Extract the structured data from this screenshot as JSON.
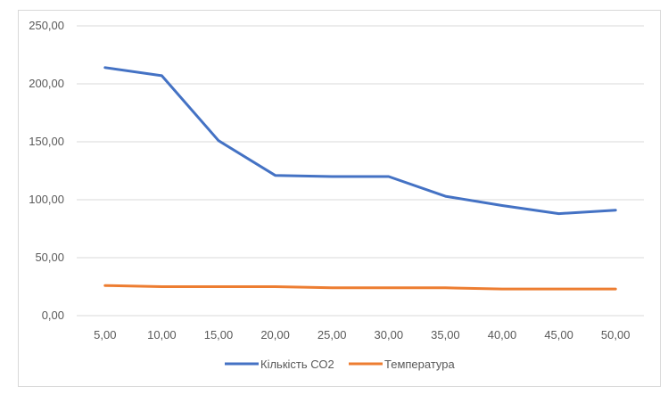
{
  "chart_data": {
    "type": "line",
    "title": "",
    "xlabel": "",
    "ylabel": "",
    "categories": [
      "5,00",
      "10,00",
      "15,00",
      "20,00",
      "25,00",
      "30,00",
      "35,00",
      "40,00",
      "45,00",
      "50,00"
    ],
    "y_ticks": [
      "0,00",
      "50,00",
      "100,00",
      "150,00",
      "200,00",
      "250,00"
    ],
    "ylim": [
      0,
      250
    ],
    "grid": true,
    "legend_position": "bottom",
    "series": [
      {
        "name": "Кількість СО2",
        "color": "#4472c4",
        "values": [
          214,
          207,
          151,
          121,
          120,
          120,
          103,
          95,
          88,
          91
        ]
      },
      {
        "name": "Температура",
        "color": "#ed7d31",
        "values": [
          26,
          25,
          25,
          25,
          24,
          24,
          24,
          23,
          23,
          23
        ]
      }
    ]
  }
}
